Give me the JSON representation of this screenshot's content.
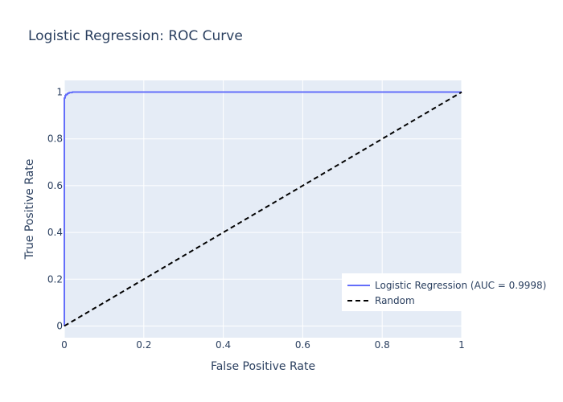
{
  "chart_data": {
    "type": "line",
    "title": "Logistic Regression: ROC Curve",
    "xlabel": "False Positive Rate",
    "ylabel": "True Positive Rate",
    "xlim": [
      0,
      1
    ],
    "ylim": [
      -0.05,
      1.05
    ],
    "x_ticks": [
      0,
      0.2,
      0.4,
      0.6,
      0.8,
      1
    ],
    "y_ticks": [
      0,
      0.2,
      0.4,
      0.6,
      0.8,
      1
    ],
    "x_tick_labels": [
      "0",
      "0.2",
      "0.4",
      "0.6",
      "0.8",
      "1"
    ],
    "y_tick_labels": [
      "0",
      "0.2",
      "0.4",
      "0.6",
      "0.8",
      "1"
    ],
    "grid": true,
    "legend_position": "bottom-right",
    "colors": {
      "plot_bg": "#E5ECF6",
      "grid": "#ffffff",
      "roc": "#636efa",
      "random": "#000000"
    },
    "series": [
      {
        "name": "Logistic Regression (AUC = 0.9998)",
        "style": "solid",
        "x": [
          0,
          0,
          0.002,
          0.002,
          0.004,
          0.004,
          0.008,
          0.008,
          0.012,
          0.012,
          0.02,
          0.02,
          1
        ],
        "y": [
          0,
          0.975,
          0.975,
          0.985,
          0.985,
          0.99,
          0.99,
          0.995,
          0.995,
          0.998,
          0.998,
          1,
          1
        ]
      },
      {
        "name": "Random",
        "style": "dash",
        "x": [
          0,
          1
        ],
        "y": [
          0,
          1
        ]
      }
    ]
  }
}
